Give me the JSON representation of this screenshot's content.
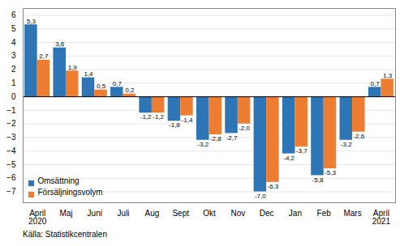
{
  "chart_data": {
    "type": "bar",
    "categories": [
      "April\n2020",
      "Maj",
      "Juni",
      "Juli",
      "Aug",
      "Sept",
      "Okt",
      "Nov",
      "Dec",
      "Jan",
      "Feb",
      "Mars",
      "April\n2021"
    ],
    "series": [
      {
        "name": "Omsättning",
        "color": "#2E75B6",
        "values": [
          5.3,
          3.6,
          1.4,
          0.7,
          -1.2,
          -1.8,
          -3.2,
          -2.7,
          -7.0,
          -4.2,
          -5.8,
          -3.2,
          0.7
        ],
        "value_labels": [
          "5,3",
          "3,6",
          "1,4",
          "0,7",
          "-1,2",
          "-1,8",
          "-3,2",
          "-2,7",
          "-7,0",
          "-4,2",
          "-5,8",
          "-3,2",
          "0,7"
        ]
      },
      {
        "name": "Försäljningsvolym",
        "color": "#ED7D31",
        "values": [
          2.7,
          1.9,
          0.5,
          0.2,
          -1.2,
          -1.4,
          -2.8,
          -2.0,
          -6.3,
          -3.7,
          -5.3,
          -2.6,
          1.3
        ],
        "value_labels": [
          "2,7",
          "1,9",
          "0,5",
          "0,2",
          "-1,2",
          "-1,4",
          "-2,8",
          "-2,0",
          "-6,3",
          "-3,7",
          "-5,3",
          "-2,6",
          "1,3"
        ]
      }
    ],
    "ylim": [
      -7.8,
      6.5
    ],
    "yticks": [
      -7,
      -6,
      -5,
      -4,
      -3,
      -2,
      -1,
      0,
      1,
      2,
      3,
      4,
      5,
      6
    ],
    "grid": true,
    "legend": "lower left",
    "data_labels": true,
    "source": "Källa: Statistikcentralen"
  }
}
